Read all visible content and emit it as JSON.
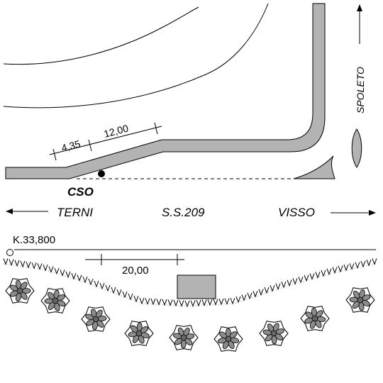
{
  "labels": {
    "dim_left": "4,35",
    "dim_right": "12,00",
    "cso": "CSO",
    "spoleto": "SPOLETO",
    "terni": "TERNI",
    "road": "S.S.209",
    "visso": "VISSO",
    "km": "K.33,800",
    "dim_bottom": "20,00"
  },
  "colors": {
    "road_fill": "#b3b3b3",
    "stroke": "#000000",
    "tree_fill": "#8c8c8c",
    "building_fill": "#b3b3b3"
  },
  "icons": {
    "north_arrow": "arrow-up-icon",
    "left_arrow": "arrow-left-icon",
    "right_arrow": "arrow-right-icon",
    "marker": "circle-marker-icon",
    "tree": "tree-icon"
  }
}
